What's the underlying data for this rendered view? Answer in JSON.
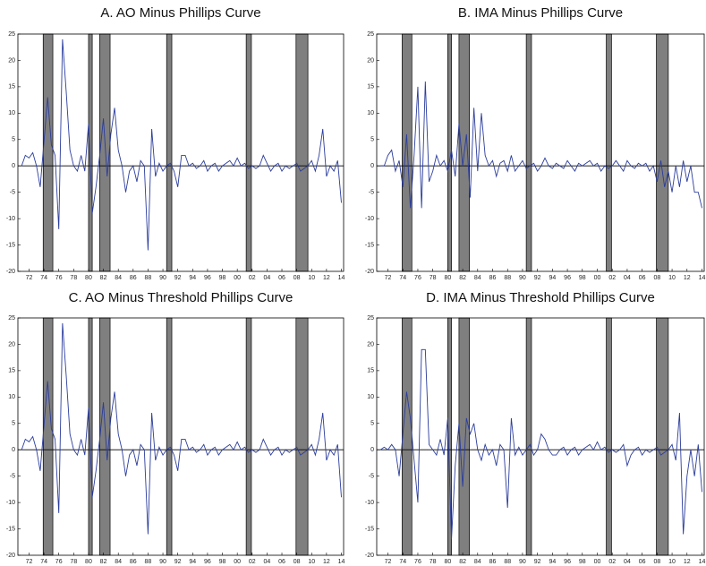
{
  "chart_data": [
    {
      "type": "line",
      "title": "A. AO Minus Phillips Curve",
      "color": "#2b3d9c",
      "recession_color": "#7f7f7f",
      "xlim": [
        1970.5,
        2014.3
      ],
      "ylim": [
        -20,
        25
      ],
      "yticks": [
        -20,
        -15,
        -10,
        -5,
        0,
        5,
        10,
        15,
        20,
        25
      ],
      "xticks": [
        {
          "value": 1972,
          "label": "72"
        },
        {
          "value": 1974,
          "label": "74"
        },
        {
          "value": 1976,
          "label": "76"
        },
        {
          "value": 1978,
          "label": "78"
        },
        {
          "value": 1980,
          "label": "80"
        },
        {
          "value": 1982,
          "label": "82"
        },
        {
          "value": 1984,
          "label": "84"
        },
        {
          "value": 1986,
          "label": "86"
        },
        {
          "value": 1988,
          "label": "88"
        },
        {
          "value": 1990,
          "label": "90"
        },
        {
          "value": 1992,
          "label": "92"
        },
        {
          "value": 1994,
          "label": "94"
        },
        {
          "value": 1996,
          "label": "96"
        },
        {
          "value": 1998,
          "label": "98"
        },
        {
          "value": 2000,
          "label": "00"
        },
        {
          "value": 2002,
          "label": "02"
        },
        {
          "value": 2004,
          "label": "04"
        },
        {
          "value": 2006,
          "label": "06"
        },
        {
          "value": 2008,
          "label": "08"
        },
        {
          "value": 2010,
          "label": "10"
        },
        {
          "value": 2012,
          "label": "12"
        },
        {
          "value": 2014,
          "label": "14"
        }
      ],
      "recessions": [
        [
          1973.9,
          1975.2
        ],
        [
          1980.0,
          1980.5
        ],
        [
          1981.5,
          1982.9
        ],
        [
          1990.5,
          1991.2
        ],
        [
          2001.2,
          2001.9
        ],
        [
          2007.9,
          2009.5
        ]
      ],
      "x": [
        1971,
        1971.5,
        1972,
        1972.5,
        1973,
        1973.5,
        1974,
        1974.5,
        1975,
        1975.5,
        1976,
        1976.5,
        1977,
        1977.5,
        1978,
        1978.5,
        1979,
        1979.5,
        1980,
        1980.5,
        1981,
        1981.5,
        1982,
        1982.5,
        1983,
        1983.5,
        1984,
        1984.5,
        1985,
        1985.5,
        1986,
        1986.5,
        1987,
        1987.5,
        1988,
        1988.5,
        1989,
        1989.5,
        1990,
        1990.5,
        1991,
        1991.5,
        1992,
        1992.5,
        1993,
        1993.5,
        1994,
        1994.5,
        1995,
        1995.5,
        1996,
        1996.5,
        1997,
        1997.5,
        1998,
        1998.5,
        1999,
        1999.5,
        2000,
        2000.5,
        2001,
        2001.5,
        2002,
        2002.5,
        2003,
        2003.5,
        2004,
        2004.5,
        2005,
        2005.5,
        2006,
        2006.5,
        2007,
        2007.5,
        2008,
        2008.5,
        2009,
        2009.5,
        2010,
        2010.5,
        2011,
        2011.5,
        2012,
        2012.5,
        2013,
        2013.5,
        2014
      ],
      "values": [
        0,
        2,
        1.5,
        2.5,
        0,
        -4,
        4.5,
        13,
        4,
        2,
        -12,
        24,
        14,
        3,
        0,
        -1,
        2,
        -1,
        8,
        -9,
        -4,
        2,
        9,
        -2,
        6,
        11,
        3,
        0,
        -5,
        -1,
        0,
        -3,
        1,
        0,
        -16,
        7,
        -2,
        0.5,
        -1,
        0,
        0.5,
        -1,
        -4,
        2,
        2,
        0,
        0.5,
        -0.5,
        0,
        1,
        -1,
        0,
        0.5,
        -1,
        0,
        0.5,
        1,
        0,
        1.5,
        0,
        0.5,
        -0.5,
        0,
        -0.5,
        0,
        2,
        0.5,
        -1,
        0,
        0.5,
        -1,
        0,
        -0.5,
        0,
        0.5,
        -1,
        -0.5,
        0,
        1,
        -1,
        2,
        7,
        -2,
        0,
        -1,
        1,
        -7
      ]
    },
    {
      "type": "line",
      "title": "B. IMA Minus Phillips Curve",
      "color": "#2b3d9c",
      "recession_color": "#7f7f7f",
      "xlim": [
        1970.5,
        2014.3
      ],
      "ylim": [
        -20,
        25
      ],
      "yticks": [
        -20,
        -15,
        -10,
        -5,
        0,
        5,
        10,
        15,
        20,
        25
      ],
      "xticks": [
        {
          "value": 1972,
          "label": "72"
        },
        {
          "value": 1974,
          "label": "74"
        },
        {
          "value": 1976,
          "label": "76"
        },
        {
          "value": 1978,
          "label": "78"
        },
        {
          "value": 1980,
          "label": "80"
        },
        {
          "value": 1982,
          "label": "82"
        },
        {
          "value": 1984,
          "label": "84"
        },
        {
          "value": 1986,
          "label": "86"
        },
        {
          "value": 1988,
          "label": "88"
        },
        {
          "value": 1990,
          "label": "90"
        },
        {
          "value": 1992,
          "label": "92"
        },
        {
          "value": 1994,
          "label": "94"
        },
        {
          "value": 1996,
          "label": "96"
        },
        {
          "value": 1998,
          "label": "98"
        },
        {
          "value": 2000,
          "label": "00"
        },
        {
          "value": 2002,
          "label": "02"
        },
        {
          "value": 2004,
          "label": "04"
        },
        {
          "value": 2006,
          "label": "06"
        },
        {
          "value": 2008,
          "label": "08"
        },
        {
          "value": 2010,
          "label": "10"
        },
        {
          "value": 2012,
          "label": "12"
        },
        {
          "value": 2014,
          "label": "14"
        }
      ],
      "recessions": [
        [
          1973.9,
          1975.2
        ],
        [
          1980.0,
          1980.5
        ],
        [
          1981.5,
          1982.9
        ],
        [
          1990.5,
          1991.2
        ],
        [
          2001.2,
          2001.9
        ],
        [
          2007.9,
          2009.5
        ]
      ],
      "x": [
        1971,
        1971.5,
        1972,
        1972.5,
        1973,
        1973.5,
        1974,
        1974.5,
        1975,
        1975.5,
        1976,
        1976.5,
        1977,
        1977.5,
        1978,
        1978.5,
        1979,
        1979.5,
        1980,
        1980.5,
        1981,
        1981.5,
        1982,
        1982.5,
        1983,
        1983.5,
        1984,
        1984.5,
        1985,
        1985.5,
        1986,
        1986.5,
        1987,
        1987.5,
        1988,
        1988.5,
        1989,
        1989.5,
        1990,
        1990.5,
        1991,
        1991.5,
        1992,
        1992.5,
        1993,
        1993.5,
        1994,
        1994.5,
        1995,
        1995.5,
        1996,
        1996.5,
        1997,
        1997.5,
        1998,
        1998.5,
        1999,
        1999.5,
        2000,
        2000.5,
        2001,
        2001.5,
        2002,
        2002.5,
        2003,
        2003.5,
        2004,
        2004.5,
        2005,
        2005.5,
        2006,
        2006.5,
        2007,
        2007.5,
        2008,
        2008.5,
        2009,
        2009.5,
        2010,
        2010.5,
        2011,
        2011.5,
        2012,
        2012.5,
        2013,
        2013.5,
        2014
      ],
      "values": [
        0,
        0,
        2,
        3,
        -1,
        1,
        -4,
        6,
        -8,
        2,
        15,
        -8,
        16,
        -3,
        -1,
        2,
        0,
        1,
        -1,
        3,
        -2,
        8,
        0,
        6,
        -6,
        11,
        -1,
        10,
        2,
        0,
        1,
        -2,
        0.5,
        1,
        -1,
        2,
        -1,
        0,
        1,
        -0.5,
        0,
        0.5,
        -1,
        0,
        1.5,
        0,
        -0.5,
        0.5,
        0,
        -0.5,
        1,
        0,
        -1,
        0.5,
        0,
        0.5,
        1,
        0,
        0.5,
        -1,
        0,
        -0.5,
        0,
        1,
        0,
        -1,
        1,
        0,
        -0.5,
        0.5,
        0,
        0.5,
        -1,
        0,
        -3,
        1,
        -4,
        -1,
        -5,
        0,
        -4,
        1,
        -3,
        0,
        -5,
        -5,
        -8
      ]
    },
    {
      "type": "line",
      "title": "C. AO Minus Threshold Phillips Curve",
      "color": "#2b3d9c",
      "recession_color": "#7f7f7f",
      "xlim": [
        1970.5,
        2014.3
      ],
      "ylim": [
        -20,
        25
      ],
      "yticks": [
        -20,
        -15,
        -10,
        -5,
        0,
        5,
        10,
        15,
        20,
        25
      ],
      "xticks": [
        {
          "value": 1972,
          "label": "72"
        },
        {
          "value": 1974,
          "label": "74"
        },
        {
          "value": 1976,
          "label": "76"
        },
        {
          "value": 1978,
          "label": "78"
        },
        {
          "value": 1980,
          "label": "80"
        },
        {
          "value": 1982,
          "label": "82"
        },
        {
          "value": 1984,
          "label": "84"
        },
        {
          "value": 1986,
          "label": "86"
        },
        {
          "value": 1988,
          "label": "88"
        },
        {
          "value": 1990,
          "label": "90"
        },
        {
          "value": 1992,
          "label": "92"
        },
        {
          "value": 1994,
          "label": "94"
        },
        {
          "value": 1996,
          "label": "96"
        },
        {
          "value": 1998,
          "label": "98"
        },
        {
          "value": 2000,
          "label": "00"
        },
        {
          "value": 2002,
          "label": "02"
        },
        {
          "value": 2004,
          "label": "04"
        },
        {
          "value": 2006,
          "label": "06"
        },
        {
          "value": 2008,
          "label": "08"
        },
        {
          "value": 2010,
          "label": "10"
        },
        {
          "value": 2012,
          "label": "12"
        },
        {
          "value": 2014,
          "label": "14"
        }
      ],
      "recessions": [
        [
          1973.9,
          1975.2
        ],
        [
          1980.0,
          1980.5
        ],
        [
          1981.5,
          1982.9
        ],
        [
          1990.5,
          1991.2
        ],
        [
          2001.2,
          2001.9
        ],
        [
          2007.9,
          2009.5
        ]
      ],
      "x": [
        1971,
        1971.5,
        1972,
        1972.5,
        1973,
        1973.5,
        1974,
        1974.5,
        1975,
        1975.5,
        1976,
        1976.5,
        1977,
        1977.5,
        1978,
        1978.5,
        1979,
        1979.5,
        1980,
        1980.5,
        1981,
        1981.5,
        1982,
        1982.5,
        1983,
        1983.5,
        1984,
        1984.5,
        1985,
        1985.5,
        1986,
        1986.5,
        1987,
        1987.5,
        1988,
        1988.5,
        1989,
        1989.5,
        1990,
        1990.5,
        1991,
        1991.5,
        1992,
        1992.5,
        1993,
        1993.5,
        1994,
        1994.5,
        1995,
        1995.5,
        1996,
        1996.5,
        1997,
        1997.5,
        1998,
        1998.5,
        1999,
        1999.5,
        2000,
        2000.5,
        2001,
        2001.5,
        2002,
        2002.5,
        2003,
        2003.5,
        2004,
        2004.5,
        2005,
        2005.5,
        2006,
        2006.5,
        2007,
        2007.5,
        2008,
        2008.5,
        2009,
        2009.5,
        2010,
        2010.5,
        2011,
        2011.5,
        2012,
        2012.5,
        2013,
        2013.5,
        2014
      ],
      "values": [
        0,
        2,
        1.5,
        2.5,
        0,
        -4,
        4.5,
        13,
        4,
        2,
        -12,
        24,
        14,
        3,
        0,
        -1,
        2,
        -1,
        8,
        -9,
        -4,
        2,
        9,
        -2,
        6,
        11,
        3,
        0,
        -5,
        -1,
        0,
        -3,
        1,
        0,
        -16,
        7,
        -2,
        0.5,
        -1,
        0,
        0.5,
        -1,
        -4,
        2,
        2,
        0,
        0.5,
        -0.5,
        0,
        1,
        -1,
        0,
        0.5,
        -1,
        0,
        0.5,
        1,
        0,
        1.5,
        0,
        0.5,
        -0.5,
        0,
        -0.5,
        0,
        2,
        0.5,
        -1,
        0,
        0.5,
        -1,
        0,
        -0.5,
        0,
        0.5,
        -1,
        -0.5,
        0,
        1,
        -1,
        2,
        7,
        -2,
        0,
        -1,
        1,
        -9
      ]
    },
    {
      "type": "line",
      "title": "D. IMA Minus Threshold Phillips Curve",
      "color": "#2b3d9c",
      "recession_color": "#7f7f7f",
      "xlim": [
        1970.5,
        2014.3
      ],
      "ylim": [
        -20,
        25
      ],
      "yticks": [
        -20,
        -15,
        -10,
        -5,
        0,
        5,
        10,
        15,
        20,
        25
      ],
      "xticks": [
        {
          "value": 1972,
          "label": "72"
        },
        {
          "value": 1974,
          "label": "74"
        },
        {
          "value": 1976,
          "label": "76"
        },
        {
          "value": 1978,
          "label": "78"
        },
        {
          "value": 1980,
          "label": "80"
        },
        {
          "value": 1982,
          "label": "82"
        },
        {
          "value": 1984,
          "label": "84"
        },
        {
          "value": 1986,
          "label": "86"
        },
        {
          "value": 1988,
          "label": "88"
        },
        {
          "value": 1990,
          "label": "90"
        },
        {
          "value": 1992,
          "label": "92"
        },
        {
          "value": 1994,
          "label": "94"
        },
        {
          "value": 1996,
          "label": "96"
        },
        {
          "value": 1998,
          "label": "98"
        },
        {
          "value": 2000,
          "label": "00"
        },
        {
          "value": 2002,
          "label": "02"
        },
        {
          "value": 2004,
          "label": "04"
        },
        {
          "value": 2006,
          "label": "06"
        },
        {
          "value": 2008,
          "label": "08"
        },
        {
          "value": 2010,
          "label": "10"
        },
        {
          "value": 2012,
          "label": "12"
        },
        {
          "value": 2014,
          "label": "14"
        }
      ],
      "recessions": [
        [
          1973.9,
          1975.2
        ],
        [
          1980.0,
          1980.5
        ],
        [
          1981.5,
          1982.9
        ],
        [
          1990.5,
          1991.2
        ],
        [
          2001.2,
          2001.9
        ],
        [
          2007.9,
          2009.5
        ]
      ],
      "x": [
        1971,
        1971.5,
        1972,
        1972.5,
        1973,
        1973.5,
        1974,
        1974.5,
        1975,
        1975.5,
        1976,
        1976.5,
        1977,
        1977.5,
        1978,
        1978.5,
        1979,
        1979.5,
        1980,
        1980.5,
        1981,
        1981.5,
        1982,
        1982.5,
        1983,
        1983.5,
        1984,
        1984.5,
        1985,
        1985.5,
        1986,
        1986.5,
        1987,
        1987.5,
        1988,
        1988.5,
        1989,
        1989.5,
        1990,
        1990.5,
        1991,
        1991.5,
        1992,
        1992.5,
        1993,
        1993.5,
        1994,
        1994.5,
        1995,
        1995.5,
        1996,
        1996.5,
        1997,
        1997.5,
        1998,
        1998.5,
        1999,
        1999.5,
        2000,
        2000.5,
        2001,
        2001.5,
        2002,
        2002.5,
        2003,
        2003.5,
        2004,
        2004.5,
        2005,
        2005.5,
        2006,
        2006.5,
        2007,
        2007.5,
        2008,
        2008.5,
        2009,
        2009.5,
        2010,
        2010.5,
        2011,
        2011.5,
        2012,
        2012.5,
        2013,
        2013.5,
        2014
      ],
      "values": [
        0,
        0.5,
        0,
        1,
        0,
        -5,
        3,
        11,
        6,
        -2,
        -10,
        19,
        19,
        1,
        0,
        -1,
        2,
        -1,
        6,
        -17,
        -3,
        5,
        -7,
        6,
        3,
        5,
        0,
        -2,
        1,
        -1,
        0,
        -3,
        1,
        0,
        -11,
        6,
        -1,
        0.5,
        -1,
        0,
        1,
        -1,
        0,
        3,
        2,
        0,
        -1,
        -1,
        0,
        0.5,
        -1,
        0,
        0.5,
        -1,
        0,
        0.5,
        1,
        0,
        1.5,
        0,
        0.5,
        -0.5,
        0,
        -0.5,
        0,
        1,
        -3,
        -1,
        0,
        0.5,
        -1,
        0,
        -0.5,
        0,
        0.5,
        -1,
        -0.5,
        0,
        1,
        -2,
        7,
        -16,
        -5,
        0,
        -5,
        1,
        -8
      ]
    }
  ]
}
